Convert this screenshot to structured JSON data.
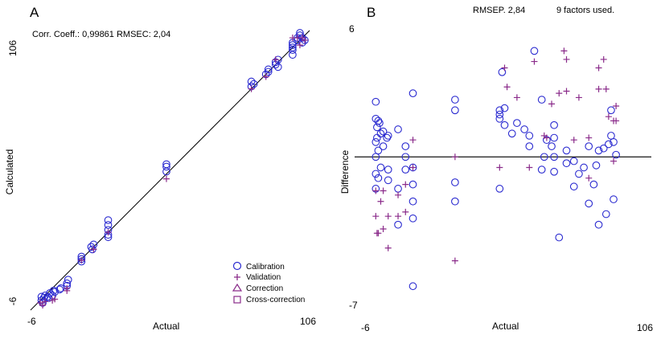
{
  "chart_data": [
    {
      "type": "scatter",
      "panel_label": "A",
      "xlabel": "Actual",
      "ylabel": "Calculated",
      "x_ticks": [
        "-6",
        "106"
      ],
      "y_ticks": [
        "106",
        "-6"
      ],
      "xlim": [
        -6,
        106
      ],
      "ylim": [
        -6,
        106
      ],
      "annotation": "Corr. Coeff.: 0,99861  RMSEC: 2,04",
      "reference_line": "y = x",
      "legend": [
        "Calibration",
        "Validation",
        "Correction",
        "Cross-correction"
      ],
      "legend_position": "bottom-right",
      "colors": {
        "calibration": "#2a2ad0",
        "validation": "#8a2b8a",
        "line": "#000000"
      },
      "series": [
        {
          "name": "Calibration",
          "marker": "circle",
          "points": [
            [
              -3.5,
              -2.5
            ],
            [
              -3.5,
              -4
            ],
            [
              -3,
              -5
            ],
            [
              -2.5,
              -3
            ],
            [
              -2,
              -2
            ],
            [
              -1,
              -2.5
            ],
            [
              -0.5,
              -3
            ],
            [
              0,
              -1
            ],
            [
              1,
              -2
            ],
            [
              1.5,
              0
            ],
            [
              2,
              -0.5
            ],
            [
              4,
              0.5
            ],
            [
              4.5,
              1
            ],
            [
              7,
              2
            ],
            [
              7,
              3
            ],
            [
              7.5,
              4.5
            ],
            [
              13,
              12
            ],
            [
              13,
              14
            ],
            [
              13,
              13
            ],
            [
              17,
              18
            ],
            [
              17.5,
              17
            ],
            [
              18,
              19
            ],
            [
              24,
              27
            ],
            [
              24,
              25
            ],
            [
              24,
              23
            ],
            [
              24,
              22
            ],
            [
              24,
              29
            ],
            [
              48,
              49
            ],
            [
              48,
              51
            ],
            [
              48,
              52
            ],
            [
              83,
              84
            ],
            [
              83,
              86
            ],
            [
              84,
              85
            ],
            [
              89,
              89
            ],
            [
              90,
              90
            ],
            [
              90,
              91
            ],
            [
              93,
              93
            ],
            [
              93,
              94
            ],
            [
              94,
              95
            ],
            [
              94,
              92
            ],
            [
              100,
              100
            ],
            [
              100,
              101
            ],
            [
              100,
              99
            ],
            [
              100,
              97
            ],
            [
              100,
              102
            ],
            [
              102,
              104
            ],
            [
              102,
              103
            ],
            [
              103,
              105
            ],
            [
              103,
              106
            ],
            [
              104,
              104
            ],
            [
              104,
              102
            ],
            [
              105,
              103
            ]
          ]
        },
        {
          "name": "Validation",
          "marker": "plus",
          "points": [
            [
              -4,
              -5
            ],
            [
              -3,
              -6
            ],
            [
              -2,
              -4.5
            ],
            [
              1,
              -4
            ],
            [
              2,
              -3.5
            ],
            [
              7,
              0
            ],
            [
              7,
              1
            ],
            [
              13,
              12.5
            ],
            [
              18,
              17
            ],
            [
              24,
              24
            ],
            [
              48,
              46
            ],
            [
              83,
              83
            ],
            [
              89,
              88
            ],
            [
              93,
              95
            ],
            [
              100,
              104
            ],
            [
              102,
              104
            ],
            [
              103,
              101
            ],
            [
              104,
              104
            ],
            [
              105,
              103
            ]
          ]
        }
      ]
    },
    {
      "type": "scatter",
      "panel_label": "B",
      "xlabel": "Actual",
      "ylabel": "Difference",
      "x_ticks": [
        "-6",
        "106"
      ],
      "y_ticks": [
        "6",
        "-7"
      ],
      "xlim": [
        -6,
        106
      ],
      "ylim": [
        -7,
        6
      ],
      "annotation_left": "RMSEP. 2,84",
      "annotation_right": "9 factors used.",
      "reference_line": "y = 0",
      "colors": {
        "calibration": "#2a2ad0",
        "validation": "#8a2b8a",
        "line": "#000000"
      },
      "series": [
        {
          "name": "Calibration",
          "marker": "circle",
          "points": [
            [
              -2,
              2.6
            ],
            [
              -2,
              1.8
            ],
            [
              -2,
              0.7
            ],
            [
              -2,
              0
            ],
            [
              -2,
              -0.8
            ],
            [
              -2,
              -1.5
            ],
            [
              -1.5,
              1.4
            ],
            [
              -1.5,
              0.9
            ],
            [
              -1,
              1.7
            ],
            [
              -1,
              0.3
            ],
            [
              -1,
              -1
            ],
            [
              -0.5,
              1.6
            ],
            [
              0,
              1.1
            ],
            [
              0,
              -0.5
            ],
            [
              1,
              1.2
            ],
            [
              1,
              0.5
            ],
            [
              2.5,
              0.9
            ],
            [
              3,
              -0.6
            ],
            [
              3,
              -1.1
            ],
            [
              3,
              1.0
            ],
            [
              7,
              1.3
            ],
            [
              7,
              -1.5
            ],
            [
              7,
              -3.2
            ],
            [
              10,
              0.5
            ],
            [
              10,
              0
            ],
            [
              10,
              -0.6
            ],
            [
              13,
              -1.3
            ],
            [
              13,
              -2.1
            ],
            [
              13,
              -2.9
            ],
            [
              13,
              -6.1
            ],
            [
              13,
              3.0
            ],
            [
              13,
              -0.5
            ],
            [
              30,
              2.7
            ],
            [
              30,
              2.2
            ],
            [
              30,
              -1.2
            ],
            [
              30,
              -2.1
            ],
            [
              48,
              2.2
            ],
            [
              48,
              2.0
            ],
            [
              48,
              1.8
            ],
            [
              48,
              -1.5
            ],
            [
              49,
              4.0
            ],
            [
              50,
              2.3
            ],
            [
              50,
              1.5
            ],
            [
              53,
              1.1
            ],
            [
              55,
              1.6
            ],
            [
              58,
              1.3
            ],
            [
              60,
              1.0
            ],
            [
              60,
              0.5
            ],
            [
              62,
              5.0
            ],
            [
              65,
              -0.6
            ],
            [
              65,
              2.7
            ],
            [
              66,
              0
            ],
            [
              67,
              0.8
            ],
            [
              69,
              0.5
            ],
            [
              70,
              0.9
            ],
            [
              70,
              1.5
            ],
            [
              70,
              0
            ],
            [
              70,
              -0.7
            ],
            [
              72,
              -3.8
            ],
            [
              75,
              0.3
            ],
            [
              75,
              -0.3
            ],
            [
              78,
              -0.2
            ],
            [
              78,
              -1.4
            ],
            [
              80,
              -0.8
            ],
            [
              82,
              -0.5
            ],
            [
              84,
              0.5
            ],
            [
              84,
              -2.2
            ],
            [
              86,
              -1.3
            ],
            [
              87,
              -0.4
            ],
            [
              88,
              0.3
            ],
            [
              88,
              -3.2
            ],
            [
              90,
              0.4
            ],
            [
              91,
              -2.7
            ],
            [
              92,
              0.6
            ],
            [
              93,
              2.2
            ],
            [
              93,
              1.0
            ],
            [
              94,
              0.7
            ],
            [
              94,
              -2.0
            ],
            [
              95,
              0.1
            ]
          ]
        },
        {
          "name": "Validation",
          "marker": "plus",
          "points": [
            [
              -2,
              -1.6
            ],
            [
              -2,
              -2.8
            ],
            [
              -1.5,
              -3.6
            ],
            [
              -1,
              -3.6
            ],
            [
              0,
              -2.1
            ],
            [
              1,
              -1.6
            ],
            [
              1,
              -3.4
            ],
            [
              3,
              -2.8
            ],
            [
              3,
              -4.3
            ],
            [
              7,
              -2.8
            ],
            [
              7,
              -1.8
            ],
            [
              10,
              -2.6
            ],
            [
              10,
              -1.3
            ],
            [
              13,
              0.8
            ],
            [
              13,
              -0.5
            ],
            [
              30,
              0
            ],
            [
              30,
              -4.9
            ],
            [
              48,
              -0.5
            ],
            [
              50,
              4.2
            ],
            [
              51,
              3.3
            ],
            [
              55,
              2.8
            ],
            [
              60,
              -0.5
            ],
            [
              62,
              4.5
            ],
            [
              66,
              1.0
            ],
            [
              67,
              0.9
            ],
            [
              69,
              2.5
            ],
            [
              72,
              3.0
            ],
            [
              74,
              5.0
            ],
            [
              75,
              4.6
            ],
            [
              75,
              3.1
            ],
            [
              78,
              0.8
            ],
            [
              80,
              2.8
            ],
            [
              84,
              0.9
            ],
            [
              84,
              -1.0
            ],
            [
              88,
              4.2
            ],
            [
              88,
              3.2
            ],
            [
              90,
              4.6
            ],
            [
              91,
              3.2
            ],
            [
              92,
              1.9
            ],
            [
              94,
              1.7
            ],
            [
              94,
              -0.2
            ],
            [
              95,
              1.7
            ],
            [
              95,
              2.4
            ]
          ]
        }
      ]
    }
  ]
}
